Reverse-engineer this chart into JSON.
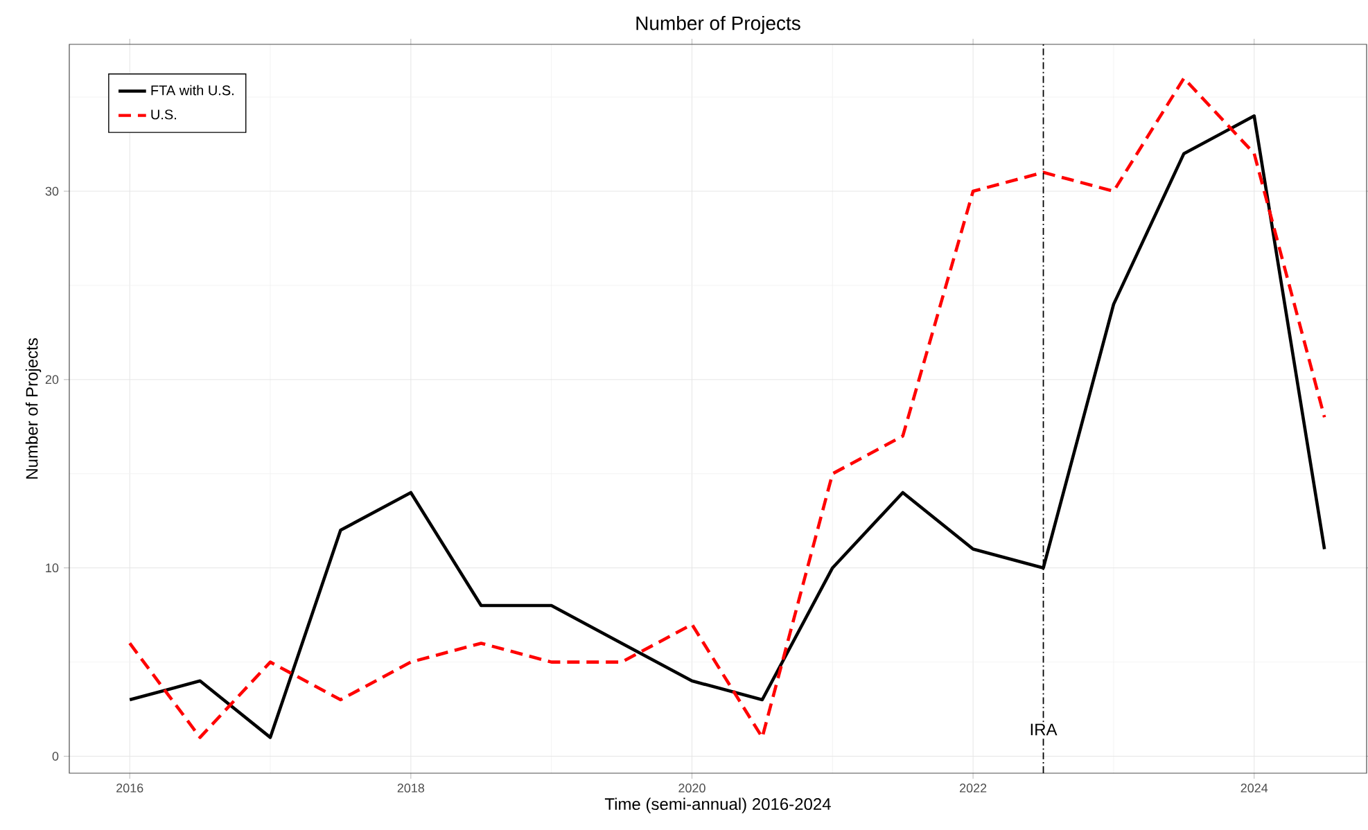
{
  "chart_data": {
    "type": "line",
    "title": "Number of Projects",
    "xlabel": "Time (semi-annual) 2016-2024",
    "ylabel": "Number of Projects",
    "x": [
      2016,
      2016.5,
      2017,
      2017.5,
      2018,
      2018.5,
      2019,
      2019.5,
      2020,
      2020.5,
      2021,
      2021.5,
      2022,
      2022.5,
      2023,
      2023.5,
      2024,
      2024.5
    ],
    "series": [
      {
        "name": "FTA with U.S.",
        "color": "#000000",
        "line_style": "solid",
        "values": [
          3,
          4,
          1,
          12,
          14,
          8,
          8,
          6,
          4,
          3,
          10,
          14,
          11,
          10,
          24,
          32,
          34,
          11
        ]
      },
      {
        "name": "U.S.",
        "color": "#ff0000",
        "line_style": "dashed",
        "values": [
          6,
          1,
          5,
          3,
          5,
          6,
          5,
          5,
          7,
          1,
          15,
          17,
          30,
          31,
          30,
          36,
          32,
          18
        ]
      }
    ],
    "xlim": [
      2015.57,
      2024.8
    ],
    "ylim": [
      -0.9,
      37.8
    ],
    "xticks": [
      2016,
      2018,
      2020,
      2022,
      2024
    ],
    "yticks": [
      0,
      10,
      20,
      30
    ],
    "ref_lines": [
      {
        "axis": "x",
        "value": 2022.5,
        "label": "IRA",
        "line_style": "dashdot",
        "color": "#000000"
      }
    ],
    "grid": true,
    "legend": "top left",
    "marker": "none"
  }
}
